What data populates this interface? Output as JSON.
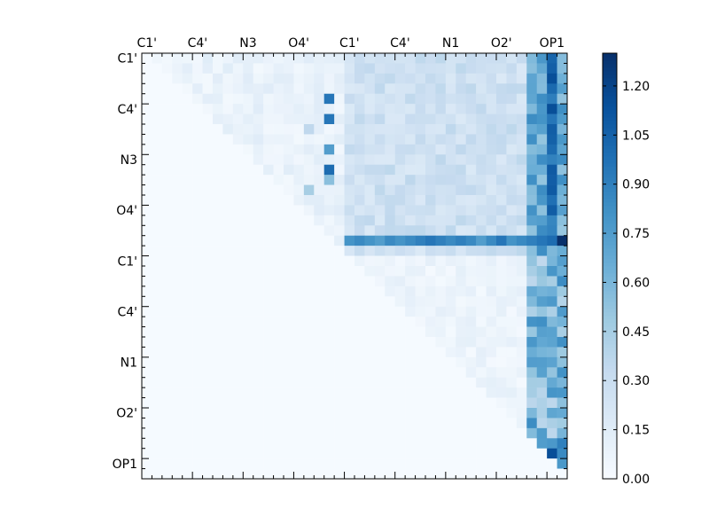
{
  "chart_data": {
    "type": "heatmap",
    "title": "",
    "n": 42,
    "x_tick_labels": [
      "C1'",
      "C4'",
      "N3",
      "O4'",
      "C1'",
      "C4'",
      "N1",
      "O2'",
      "OP1"
    ],
    "y_tick_labels": [
      "C1'",
      "C4'",
      "N3",
      "O4'",
      "C1'",
      "C4'",
      "N1",
      "O2'",
      "OP1"
    ],
    "tick_every": 5,
    "tick_start": 0,
    "x_labels_position": "top",
    "colormap": "Blues",
    "colormap_stops": [
      "#f7fbff",
      "#deebf7",
      "#c6dbef",
      "#9ecae1",
      "#6baed6",
      "#4292c6",
      "#2171b5",
      "#08519c",
      "#08306b"
    ],
    "vmin": 0.0,
    "vmax": 1.3,
    "colorbar": {
      "ticks": [
        "0.00",
        "0.15",
        "0.30",
        "0.45",
        "0.60",
        "0.75",
        "0.90",
        "1.05",
        "1.20"
      ],
      "values": [
        0.0,
        0.15,
        0.3,
        0.45,
        0.6,
        0.75,
        0.9,
        1.05,
        1.2
      ],
      "position": "right"
    },
    "matrix_structure": "upper-triangular (values above diagonal, near zero below)",
    "strong_row_index": 18,
    "strong_row_values_from_col_20": [
      0.8,
      0.85,
      0.8,
      0.75,
      0.85,
      0.8,
      0.85,
      0.9,
      0.95,
      0.9,
      0.85,
      0.9,
      0.85,
      0.75,
      0.85,
      0.95,
      0.8,
      0.85,
      0.9,
      0.95,
      1.0,
      1.3
    ]
  }
}
